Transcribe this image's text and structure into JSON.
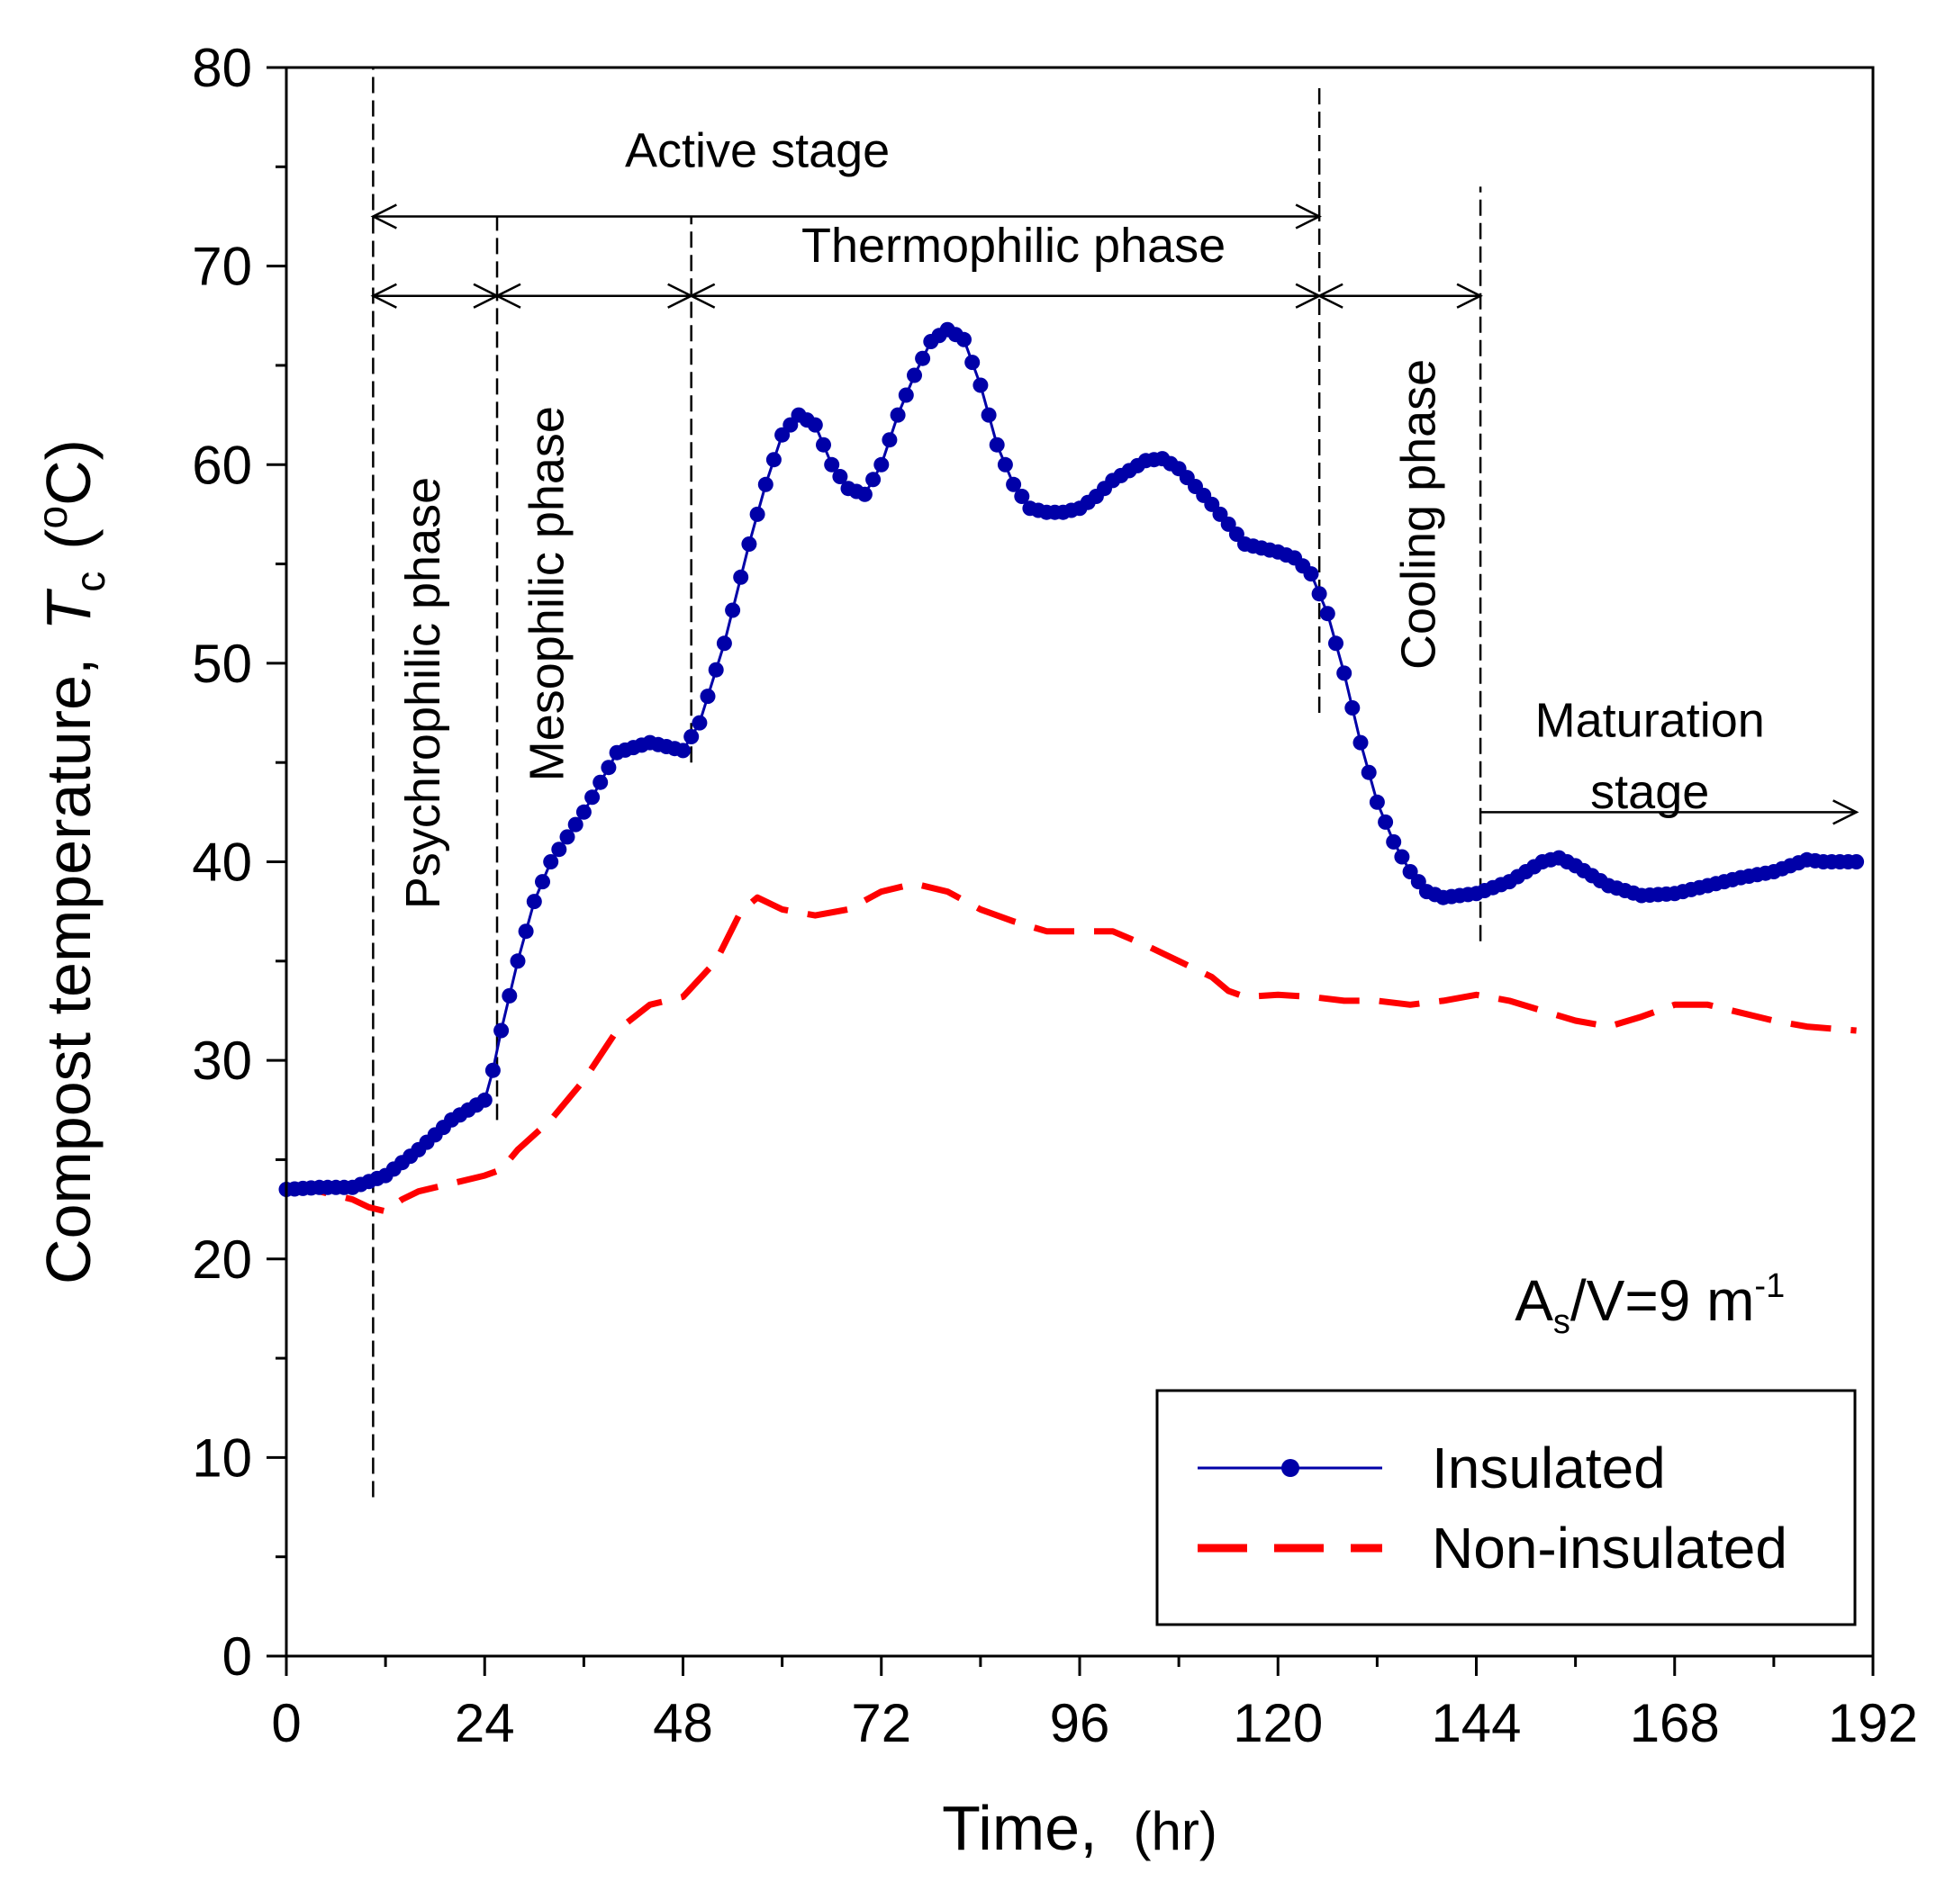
{
  "chart_data": {
    "type": "line",
    "title": "",
    "xlabel": "Time,",
    "xlabel_unit": "(hr)",
    "ylabel": "Compost temperature,",
    "ylabel_symbol": "T",
    "ylabel_subscript": "c",
    "ylabel_unit_open": "(",
    "ylabel_unit_degree": "o",
    "ylabel_unit_close": "C)",
    "xlim": [
      0,
      192
    ],
    "ylim": [
      0,
      80
    ],
    "xticks": [
      0,
      24,
      48,
      72,
      96,
      120,
      144,
      168,
      192
    ],
    "yticks": [
      0,
      10,
      20,
      30,
      40,
      50,
      60,
      70,
      80
    ],
    "grid": false,
    "legend_position": "bottom-right",
    "annotation": {
      "prefix": "A",
      "sub": "s",
      "mid": "/V=9 m",
      "sup": "-1"
    },
    "series": [
      {
        "name": "Insulated",
        "color": "#0000a8",
        "style": "solid-markers",
        "points": [
          [
            0,
            23.5
          ],
          [
            4,
            23.6
          ],
          [
            8,
            23.6
          ],
          [
            12,
            24.2
          ],
          [
            16,
            25.5
          ],
          [
            20,
            27.0
          ],
          [
            24,
            28.0
          ],
          [
            25,
            29.5
          ],
          [
            26,
            31.5
          ],
          [
            28,
            35.0
          ],
          [
            30,
            38.0
          ],
          [
            32,
            40.0
          ],
          [
            36,
            42.5
          ],
          [
            40,
            45.5
          ],
          [
            44,
            46.0
          ],
          [
            48,
            45.6
          ],
          [
            50,
            47.0
          ],
          [
            53,
            51.0
          ],
          [
            56,
            56.0
          ],
          [
            58,
            59.0
          ],
          [
            60,
            61.5
          ],
          [
            62,
            62.5
          ],
          [
            64,
            62.0
          ],
          [
            66,
            60.0
          ],
          [
            68,
            58.8
          ],
          [
            70,
            58.5
          ],
          [
            72,
            60.0
          ],
          [
            74,
            62.5
          ],
          [
            76,
            64.5
          ],
          [
            78,
            66.2
          ],
          [
            80,
            66.8
          ],
          [
            82,
            66.3
          ],
          [
            84,
            64.0
          ],
          [
            86,
            61.0
          ],
          [
            88,
            59.0
          ],
          [
            90,
            57.8
          ],
          [
            92,
            57.6
          ],
          [
            94,
            57.6
          ],
          [
            96,
            57.8
          ],
          [
            98,
            58.4
          ],
          [
            100,
            59.2
          ],
          [
            104,
            60.2
          ],
          [
            106,
            60.3
          ],
          [
            108,
            59.8
          ],
          [
            112,
            58.0
          ],
          [
            116,
            56.0
          ],
          [
            120,
            55.6
          ],
          [
            122,
            55.3
          ],
          [
            124,
            54.5
          ],
          [
            126,
            52.5
          ],
          [
            128,
            49.5
          ],
          [
            130,
            46.0
          ],
          [
            132,
            43.0
          ],
          [
            134,
            41.0
          ],
          [
            136,
            39.5
          ],
          [
            138,
            38.5
          ],
          [
            140,
            38.2
          ],
          [
            144,
            38.4
          ],
          [
            148,
            39.0
          ],
          [
            152,
            40.0
          ],
          [
            154,
            40.2
          ],
          [
            156,
            39.8
          ],
          [
            160,
            38.8
          ],
          [
            164,
            38.3
          ],
          [
            168,
            38.4
          ],
          [
            172,
            38.8
          ],
          [
            176,
            39.2
          ],
          [
            180,
            39.5
          ],
          [
            184,
            40.1
          ],
          [
            186,
            40.0
          ],
          [
            188,
            40.0
          ],
          [
            190,
            40.0
          ]
        ]
      },
      {
        "name": "Non-insulated",
        "color": "#ff0000",
        "style": "dashed",
        "points": [
          [
            0,
            23.6
          ],
          [
            4,
            23.4
          ],
          [
            8,
            23.0
          ],
          [
            10,
            22.6
          ],
          [
            12,
            22.4
          ],
          [
            14,
            23.0
          ],
          [
            16,
            23.4
          ],
          [
            20,
            23.8
          ],
          [
            24,
            24.2
          ],
          [
            26,
            24.5
          ],
          [
            28,
            25.5
          ],
          [
            32,
            27.0
          ],
          [
            36,
            29.0
          ],
          [
            40,
            31.5
          ],
          [
            44,
            32.8
          ],
          [
            48,
            33.2
          ],
          [
            52,
            35.0
          ],
          [
            55,
            37.5
          ],
          [
            57,
            38.2
          ],
          [
            60,
            37.6
          ],
          [
            64,
            37.3
          ],
          [
            68,
            37.6
          ],
          [
            72,
            38.5
          ],
          [
            76,
            38.9
          ],
          [
            80,
            38.5
          ],
          [
            84,
            37.6
          ],
          [
            88,
            37.0
          ],
          [
            92,
            36.5
          ],
          [
            96,
            36.5
          ],
          [
            100,
            36.5
          ],
          [
            104,
            35.8
          ],
          [
            108,
            35.0
          ],
          [
            112,
            34.2
          ],
          [
            114,
            33.5
          ],
          [
            116,
            33.2
          ],
          [
            120,
            33.3
          ],
          [
            124,
            33.2
          ],
          [
            128,
            33.0
          ],
          [
            132,
            33.0
          ],
          [
            136,
            32.8
          ],
          [
            140,
            33.0
          ],
          [
            144,
            33.3
          ],
          [
            148,
            33.0
          ],
          [
            152,
            32.5
          ],
          [
            156,
            32.0
          ],
          [
            160,
            31.7
          ],
          [
            164,
            32.2
          ],
          [
            168,
            32.8
          ],
          [
            172,
            32.8
          ],
          [
            176,
            32.4
          ],
          [
            180,
            32.0
          ],
          [
            184,
            31.7
          ],
          [
            190,
            31.5
          ]
        ]
      }
    ],
    "phase_boundaries": [
      {
        "x": 10.5,
        "y_from": 8,
        "y_to": 80
      },
      {
        "x": 25.5,
        "y_from": 27,
        "y_to": 72.5
      },
      {
        "x": 49,
        "y_from": 45,
        "y_to": 72.5
      },
      {
        "x": 125,
        "y_from": 47.5,
        "y_to": 79
      },
      {
        "x": 144.5,
        "y_from": 36,
        "y_to": 74
      }
    ],
    "phase_arrows": [
      {
        "name": "active-stage",
        "x_from": 10.5,
        "x_to": 125,
        "y": 72.5
      },
      {
        "name": "psychrophilic",
        "x_from": 10.5,
        "x_to": 25.5,
        "y": 68.5
      },
      {
        "name": "mesophilic",
        "x_from": 25.5,
        "x_to": 49,
        "y": 68.5
      },
      {
        "name": "thermophilic",
        "x_from": 49,
        "x_to": 125,
        "y": 68.5
      },
      {
        "name": "cooling",
        "x_from": 125,
        "x_to": 144.5,
        "y": 68.5
      },
      {
        "name": "maturation",
        "x_from": 144.5,
        "x_to": 190,
        "y": 42.5
      }
    ],
    "phase_labels": {
      "active_stage": "Active stage",
      "thermophilic": "Thermophilic phase",
      "psychrophilic": "Psychrophilic phase",
      "mesophilic": "Mesophilic phase",
      "cooling": "Cooling phase",
      "maturation_line1": "Maturation",
      "maturation_line2": "stage"
    }
  }
}
